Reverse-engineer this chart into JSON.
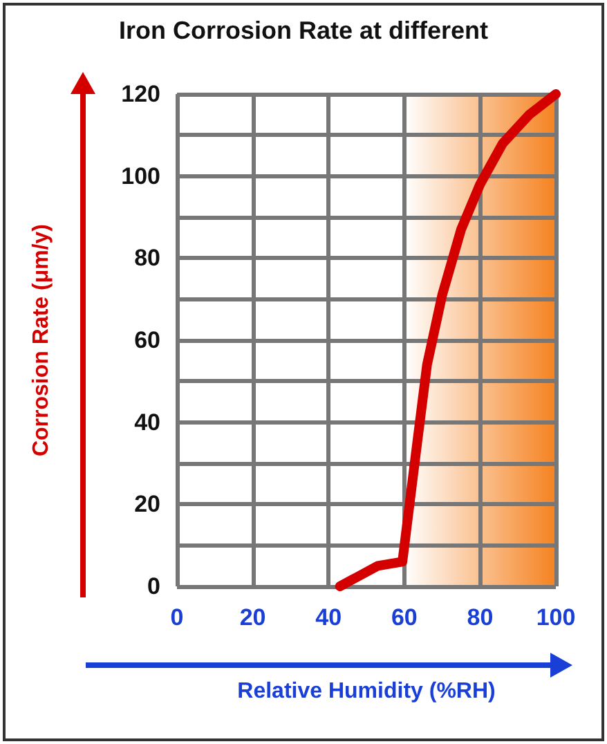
{
  "chart_data": {
    "type": "line",
    "title": "Iron Corrosion Rate at different",
    "xlabel": "Relative Humidity (%RH)",
    "ylabel": "Corrosion Rate (μm/y)",
    "x": [
      43,
      53,
      59.5,
      63,
      66,
      70,
      75,
      80,
      86,
      93,
      100
    ],
    "series": [
      {
        "color": "#d40000",
        "values": [
          0,
          5,
          6,
          32,
          54,
          71,
          87,
          98,
          108,
          115,
          120
        ]
      }
    ],
    "xlim": [
      0,
      100
    ],
    "xticks": [
      0,
      20,
      40,
      60,
      80,
      100
    ],
    "ylim": [
      0,
      120
    ],
    "yticks": [
      0,
      {
        "value": 10,
        "label": null
      },
      20,
      {
        "value": 30,
        "label": null
      },
      40,
      {
        "value": 50,
        "label": null
      },
      60,
      {
        "value": 70,
        "label": null
      },
      80,
      {
        "value": 90,
        "label": null
      },
      100,
      {
        "value": 110,
        "label": null
      },
      120
    ],
    "bands": [
      {
        "axis": "x",
        "from": 60,
        "to": 100,
        "color": "#f58220"
      }
    ],
    "grid": true,
    "line_style": "solid"
  }
}
